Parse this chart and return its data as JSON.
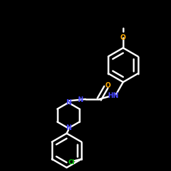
{
  "background_color": "#000000",
  "bond_color": "#ffffff",
  "atom_colors": {
    "N": "#4444ff",
    "O": "#ffaa00",
    "Cl": "#00cc00",
    "C": "#ffffff"
  },
  "figsize": [
    2.5,
    2.5
  ],
  "dpi": 100
}
